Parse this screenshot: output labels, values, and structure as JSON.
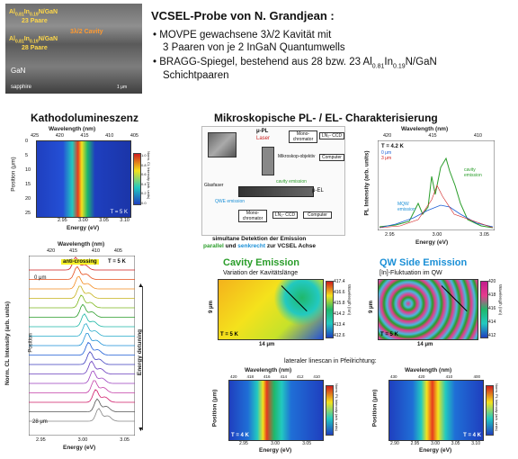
{
  "header": {
    "title": "VCSEL-Probe von N. Grandjean :",
    "bullets": [
      "MOVPE gewachsene 3λ/2 Kavität mit",
      "3 Paaren von je 2 InGaN Quantumwells",
      "BRAGG-Spiegel, bestehend aus 28 bzw. 23 Al",
      "Schichtpaaren"
    ],
    "bullet3_sub1": "0.81",
    "bullet3_mid": "In",
    "bullet3_sub2": "0.19",
    "bullet3_end": "N/GaN"
  },
  "sem_image": {
    "label1": "Al",
    "label1b": "In",
    "label1c": "N/GaN",
    "label1_pairs": "23 Paare",
    "label2": "Al",
    "label2b": "In",
    "label2c": "N/GaN",
    "label2_pairs": "28 Paare",
    "cavity": "3λ/2 Cavity",
    "gan": "GaN",
    "sapphire": "sapphire",
    "scale": "1 μm"
  },
  "left": {
    "heading": "Kathodolumineszenz",
    "plot1": {
      "top_label": "Wavelength (nm)",
      "top_ticks": [
        "425",
        "420",
        "415",
        "410",
        "405"
      ],
      "y_label": "Position (μm)",
      "y_ticks": [
        "0",
        "5",
        "10",
        "15",
        "20",
        "25"
      ],
      "x_label": "Energy (eV)",
      "x_ticks": [
        "2.95",
        "3.00",
        "3.05",
        "3.10"
      ],
      "cb_label": "Norm. CL Intensity (arb. units)",
      "cb_ticks": [
        "1.0",
        "0.8",
        "0.6",
        "0.4",
        "0.2",
        "0.0"
      ],
      "temp": "T = 5 K"
    },
    "plot2": {
      "top_label": "Wavelength (nm)",
      "top_ticks": [
        "420",
        "415",
        "410",
        "405"
      ],
      "temp": "T = 5 K",
      "anticrossing": "anti-crossing",
      "pos_start": "0 μm",
      "pos_end": "28 μm",
      "pos_label": "Position",
      "y_label": "Norm. CL Intensity (arb. units)",
      "x_label": "Energy (eV)",
      "x_ticks": [
        "2.95",
        "3.00",
        "3.05"
      ],
      "detuning": "Energy detuning"
    }
  },
  "right": {
    "heading": "Mikroskopische PL- / EL- Charakterisierung",
    "setup": {
      "mu_pl": "μ-PL",
      "laser": "Laser",
      "monochromator": "Mono-chromator",
      "ccd": "LN₂- CCD",
      "objective": "Mikroskop-objektiv",
      "cavity_emission": "cavity emission",
      "mu_el": "μ-EL",
      "glass_fiber": "Glasfaser",
      "qwe": "QWE emission",
      "monochromator2": "Mono-chromator",
      "ccd2": "LN₂- CCD",
      "computer": "Computer",
      "computer2": "Computer",
      "caption1": "simultane Detektion der Emission",
      "caption2a": "parallel",
      "caption2b": " und ",
      "caption2c": "senkrecht",
      "caption2d": " zur VCSEL Achse"
    },
    "pl_plot": {
      "top_label": "Wavelength (nm)",
      "top_ticks": [
        "420",
        "415",
        "410"
      ],
      "temp": "T = 4.2 K",
      "legend1": "0 μm",
      "legend2": "3 μm",
      "cavity_lbl": "cavity emission",
      "qw_lbl": "MQW emission",
      "y_label": "PL Intensity (arb. units)",
      "x_label": "Energy (eV)",
      "x_ticks": [
        "2.95",
        "3.00",
        "3.05"
      ]
    },
    "map1": {
      "title": "Cavity Emission",
      "subtitle": "Variation der Kavitätslänge",
      "size_x": "14 μm",
      "size_y": "9 μm",
      "temp": "T = 5 K",
      "cb_label": "Wavelength (nm)",
      "cb_ticks": [
        "417.4",
        "416.6",
        "415.8",
        "414.2",
        "413.4",
        "412.6"
      ]
    },
    "map2": {
      "title": "QW Side Emission",
      "subtitle": "[In]-Fluktuation im QW",
      "size_x": "14 μm",
      "size_y": "9 μm",
      "temp": "T = 5 K",
      "cb_label": "Wavelength (nm)",
      "cb_ticks": [
        "420",
        "418",
        "416",
        "414",
        "412"
      ]
    },
    "linescan_caption": "lateraler linescan in Pfeilrichtung:",
    "ls1": {
      "top_label": "Wavelength (nm)",
      "top_ticks": [
        "420",
        "418",
        "416",
        "414",
        "412",
        "410"
      ],
      "y_label": "Position (μm)",
      "x_label": "Energy (eV)",
      "x_ticks": [
        "2.95",
        "3.00",
        "3.05"
      ],
      "temp": "T = 4 K",
      "cb_label": "Norm. PL Intensity (arb. units)"
    },
    "ls2": {
      "top_label": "Wavelength (nm)",
      "top_ticks": [
        "430",
        "420",
        "410",
        "400"
      ],
      "y_label": "Position (μm)",
      "x_label": "Energy (eV)",
      "x_ticks": [
        "2.90",
        "2.95",
        "3.00",
        "3.05",
        "3.10"
      ],
      "temp": "T = 4 K",
      "cb_label": "Norm. PL Intensity (arb. units)"
    }
  }
}
